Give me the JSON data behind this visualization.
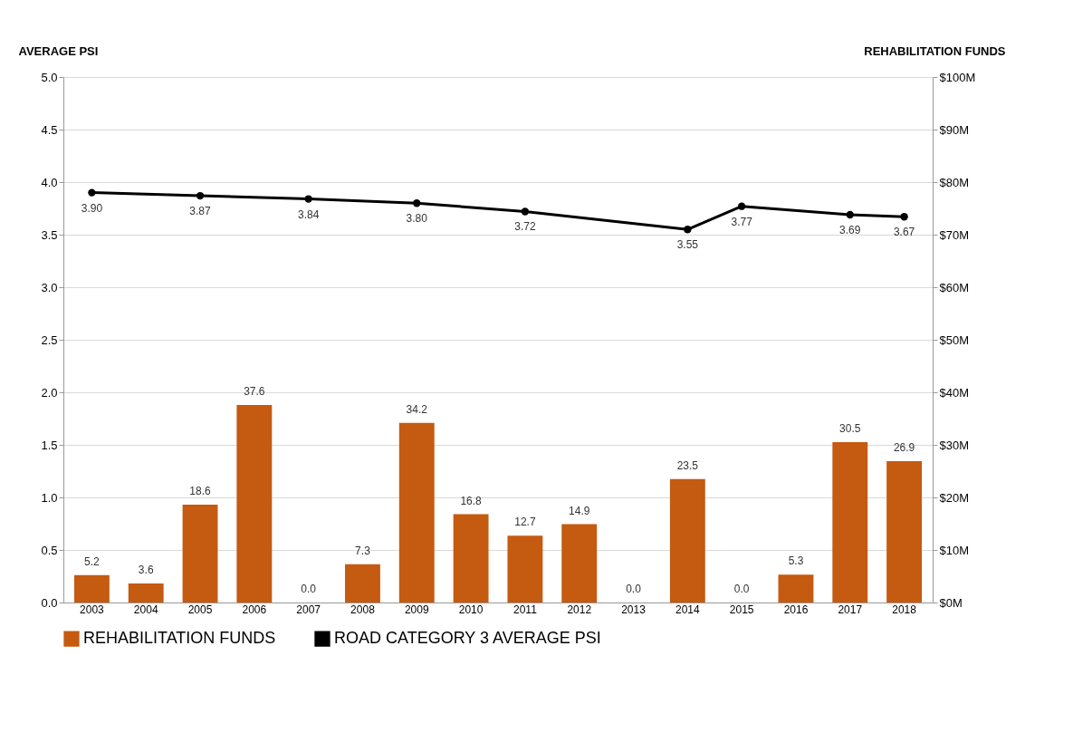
{
  "chart_data": {
    "type": "bar",
    "categories": [
      "2003",
      "2004",
      "2005",
      "2006",
      "2007",
      "2008",
      "2009",
      "2010",
      "2011",
      "2012",
      "2013",
      "2014",
      "2015",
      "2016",
      "2017",
      "2018"
    ],
    "ylabel": "AVERAGE PSI",
    "y2label": "REHABILITATION FUNDS",
    "series": [
      {
        "name": "REHABILITATION FUNDS",
        "axis": "y2",
        "color": "#c55a11",
        "values": [
          5.2,
          3.6,
          18.6,
          37.6,
          0.0,
          7.3,
          34.2,
          16.8,
          12.7,
          14.9,
          0.0,
          23.5,
          0.0,
          5.3,
          30.5,
          26.9
        ],
        "value_labels": [
          "5.2",
          "3.6",
          "18.6",
          "37.6",
          "0.0",
          "7.3",
          "34.2",
          "16.8",
          "12.7",
          "14.9",
          "0.0",
          "23.5",
          "0.0",
          "5.3",
          "30.5",
          "26.9"
        ]
      },
      {
        "name": "ROAD CATEGORY 3 AVERAGE PSI",
        "type": "line",
        "axis": "y",
        "color": "#000000",
        "marker": "circle",
        "values": [
          3.9,
          null,
          3.87,
          null,
          3.84,
          null,
          3.8,
          null,
          3.72,
          null,
          null,
          3.55,
          3.77,
          null,
          3.69,
          3.67
        ],
        "value_labels": [
          "3.90",
          null,
          "3.87",
          null,
          "3.84",
          null,
          "3.80",
          null,
          "3.72",
          null,
          null,
          "3.55",
          "3.77",
          null,
          "3.69",
          "3.67"
        ]
      }
    ],
    "ylim": [
      0,
      5
    ],
    "yticks": [
      {
        "value": 0,
        "label": "0.0"
      },
      {
        "value": 0.5,
        "label": "0.5"
      },
      {
        "value": 1,
        "label": "1.0"
      },
      {
        "value": 1.5,
        "label": "1.5"
      },
      {
        "value": 2,
        "label": "2.0"
      },
      {
        "value": 2.5,
        "label": "2.5"
      },
      {
        "value": 3,
        "label": "3.0"
      },
      {
        "value": 3.5,
        "label": "3.5"
      },
      {
        "value": 4,
        "label": "4.0"
      },
      {
        "value": 4.5,
        "label": "4.5"
      },
      {
        "value": 5,
        "label": "5.0"
      }
    ],
    "y2lim": [
      0,
      100
    ],
    "y2ticks": [
      {
        "value": 0,
        "label": "$0M"
      },
      {
        "value": 10,
        "label": "$10M"
      },
      {
        "value": 20,
        "label": "$20M"
      },
      {
        "value": 30,
        "label": "$30M"
      },
      {
        "value": 40,
        "label": "$40M"
      },
      {
        "value": 50,
        "label": "$50M"
      },
      {
        "value": 60,
        "label": "$60M"
      },
      {
        "value": 70,
        "label": "$70M"
      },
      {
        "value": 80,
        "label": "$80M"
      },
      {
        "value": 90,
        "label": "$90M"
      },
      {
        "value": 100,
        "label": "$100M"
      }
    ],
    "grid": "y",
    "legend": "bottom"
  }
}
